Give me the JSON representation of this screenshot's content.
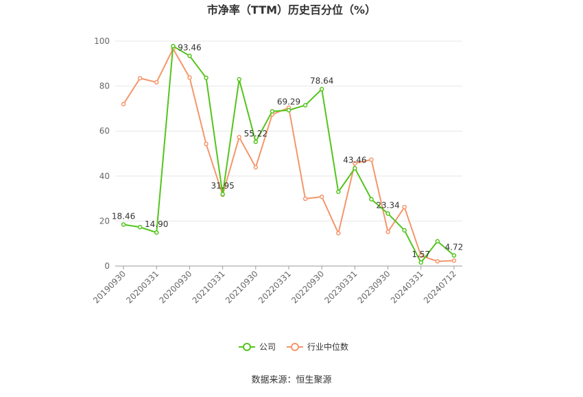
{
  "chart_data": {
    "type": "line",
    "title": "市净率（TTM）历史百分位（%）",
    "source": "数据来源：恒生聚源",
    "categories": [
      "20190930",
      null,
      "20200331",
      null,
      "20200930",
      null,
      "20210331",
      null,
      "20210930",
      null,
      "20220331",
      null,
      "20220930",
      null,
      "20230331",
      null,
      "20230930",
      null,
      "20240331",
      null,
      "20240712"
    ],
    "series": [
      {
        "name": "公司",
        "color": "#52c41a",
        "values": [
          18.46,
          17.3,
          14.9,
          97.8,
          93.46,
          83.7,
          31.95,
          83.0,
          55.22,
          68.8,
          69.29,
          71.5,
          78.64,
          33.0,
          43.46,
          29.7,
          23.34,
          15.9,
          1.57,
          11.0,
          4.72
        ],
        "value_labels": [
          "18.46",
          null,
          "14.90",
          null,
          "93.46",
          null,
          "31.95",
          null,
          "55.22",
          null,
          "69.29",
          null,
          "78.64",
          null,
          "43.46",
          null,
          "23.34",
          null,
          "1.57",
          null,
          "4.72"
        ]
      },
      {
        "name": "行业中位数",
        "color": "#f5956a",
        "values": [
          72.0,
          83.5,
          81.7,
          96.6,
          83.8,
          54.3,
          31.7,
          57.3,
          43.9,
          67.4,
          70.4,
          29.9,
          30.8,
          14.6,
          45.7,
          47.3,
          15.2,
          26.2,
          4.6,
          2.1,
          2.4
        ]
      }
    ],
    "ylim": [
      0,
      100
    ],
    "yticks": [
      0,
      20,
      40,
      60,
      80,
      100
    ],
    "grid": true,
    "legend": "bottom"
  }
}
